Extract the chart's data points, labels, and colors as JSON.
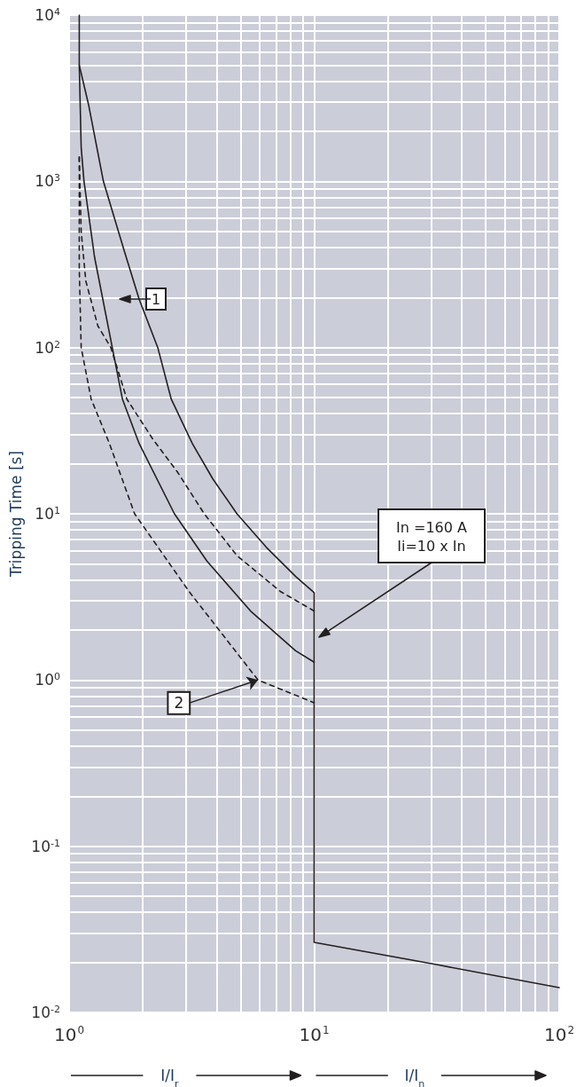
{
  "chart_data": {
    "type": "line",
    "ylabel": "Tripping Time [s]",
    "log": "xy",
    "grid": true,
    "marker": "none",
    "xlim": [
      1,
      100
    ],
    "ylim": [
      0.01,
      10000
    ],
    "xticks": [
      {
        "value": 1,
        "label": "10$^{0}$"
      },
      {
        "value": 2,
        "label": null
      },
      {
        "value": 3,
        "label": null
      },
      {
        "value": 4,
        "label": null
      },
      {
        "value": 5,
        "label": null
      },
      {
        "value": 6,
        "label": null
      },
      {
        "value": 7,
        "label": null
      },
      {
        "value": 8,
        "label": null
      },
      {
        "value": 9,
        "label": null
      },
      {
        "value": 10,
        "label": "10$^{1}$"
      },
      {
        "value": 20,
        "label": null
      },
      {
        "value": 30,
        "label": null
      },
      {
        "value": 40,
        "label": null
      },
      {
        "value": 50,
        "label": null
      },
      {
        "value": 60,
        "label": null
      },
      {
        "value": 70,
        "label": null
      },
      {
        "value": 80,
        "label": null
      },
      {
        "value": 90,
        "label": null
      },
      {
        "value": 100,
        "label": "10$^{2}$"
      }
    ],
    "yticks": [
      {
        "value": 0.01,
        "label": "10$^{-2}$"
      },
      {
        "value": 0.02,
        "label": null
      },
      {
        "value": 0.03,
        "label": null
      },
      {
        "value": 0.04,
        "label": null
      },
      {
        "value": 0.05,
        "label": null
      },
      {
        "value": 0.06,
        "label": null
      },
      {
        "value": 0.07,
        "label": null
      },
      {
        "value": 0.08,
        "label": null
      },
      {
        "value": 0.09,
        "label": null
      },
      {
        "value": 0.1,
        "label": "10$^{-1}$"
      },
      {
        "value": 0.2,
        "label": null
      },
      {
        "value": 0.3,
        "label": null
      },
      {
        "value": 0.4,
        "label": null
      },
      {
        "value": 0.5,
        "label": null
      },
      {
        "value": 0.6,
        "label": null
      },
      {
        "value": 0.7,
        "label": null
      },
      {
        "value": 0.8,
        "label": null
      },
      {
        "value": 0.9,
        "label": null
      },
      {
        "value": 1,
        "label": "10$^{0}$"
      },
      {
        "value": 2,
        "label": null
      },
      {
        "value": 3,
        "label": null
      },
      {
        "value": 4,
        "label": null
      },
      {
        "value": 5,
        "label": null
      },
      {
        "value": 6,
        "label": null
      },
      {
        "value": 7,
        "label": null
      },
      {
        "value": 8,
        "label": null
      },
      {
        "value": 9,
        "label": null
      },
      {
        "value": 10,
        "label": "10$^{1}$"
      },
      {
        "value": 20,
        "label": null
      },
      {
        "value": 30,
        "label": null
      },
      {
        "value": 40,
        "label": null
      },
      {
        "value": 50,
        "label": null
      },
      {
        "value": 60,
        "label": null
      },
      {
        "value": 70,
        "label": null
      },
      {
        "value": 80,
        "label": null
      },
      {
        "value": 90,
        "label": null
      },
      {
        "value": 100,
        "label": "10$^{2}$"
      },
      {
        "value": 200,
        "label": null
      },
      {
        "value": 300,
        "label": null
      },
      {
        "value": 400,
        "label": null
      },
      {
        "value": 500,
        "label": null
      },
      {
        "value": 600,
        "label": null
      },
      {
        "value": 700,
        "label": null
      },
      {
        "value": 800,
        "label": null
      },
      {
        "value": 900,
        "label": null
      },
      {
        "value": 1000,
        "label": "10$^{3}$"
      },
      {
        "value": 2000,
        "label": null
      },
      {
        "value": 3000,
        "label": null
      },
      {
        "value": 4000,
        "label": null
      },
      {
        "value": 5000,
        "label": null
      },
      {
        "value": 6000,
        "label": null
      },
      {
        "value": 7000,
        "label": null
      },
      {
        "value": 8000,
        "label": null
      },
      {
        "value": 9000,
        "label": null
      },
      {
        "value": 10000,
        "label": "10$^{4}$"
      }
    ],
    "series": [
      {
        "color": "#231f20",
        "line_style": "solid",
        "x": [
          1.1,
          1.1,
          1.2,
          1.38,
          1.68,
          1.93,
          2.3,
          2.61,
          3.18,
          3.86,
          4.84,
          6.37,
          8.4,
          10,
          10,
          31.6,
          100
        ],
        "values": [
          10000,
          5000,
          2900,
          1000,
          380,
          196,
          100,
          49,
          26.5,
          16.2,
          10,
          6.3,
          4.2,
          3.35,
          0.0264,
          0.0194,
          0.0141
        ]
      },
      {
        "color": "#231f20",
        "line_style": "solid",
        "x": [
          1.1,
          1.12,
          1.15,
          1.27,
          1.5,
          1.65,
          1.93,
          2.69,
          3.65,
          5.5,
          8.4,
          10
        ],
        "values": [
          5000,
          1600,
          1000,
          350,
          100,
          49,
          26.5,
          10,
          5.2,
          2.6,
          1.5,
          1.28
        ]
      },
      {
        "color": "#231f20",
        "line_style": "dashed",
        "x": [
          1.1,
          1.12,
          1.17,
          1.31,
          1.48,
          1.72,
          2.2,
          2.77,
          3.56,
          4.84,
          7.3,
          10
        ],
        "values": [
          1400,
          500,
          251,
          135,
          100,
          49,
          28,
          17.8,
          10,
          5.6,
          3.4,
          2.6
        ]
      },
      {
        "color": "#231f20",
        "line_style": "dashed",
        "x": [
          1.1,
          1.1,
          1.12,
          1.23,
          1.46,
          1.85,
          3.09,
          5.9,
          10
        ],
        "values": [
          1400,
          300,
          100,
          49,
          26.5,
          10,
          3.4,
          1.0,
          0.73
        ]
      }
    ],
    "annotations": [
      "1",
      {
        "text": "2",
        "x": 5.9,
        "y": 1.0
      },
      "In =160 A\nIi=10 x In",
      "I/I$_{r}$",
      "I/I$_{n}$"
    ]
  }
}
